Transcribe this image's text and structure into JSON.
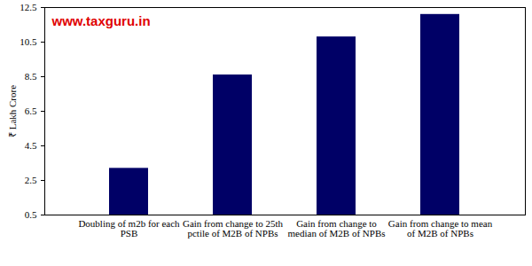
{
  "chart_data": {
    "type": "bar",
    "annotations": [
      "www.taxguru.in"
    ],
    "y_label": "₹ Lakh Crore",
    "categories": [
      "Doubling of m2b for each PSB",
      "Gain from change to 25th pctile of M2B of NPBs",
      "Gain from change to median of M2B of NPBs",
      "Gain from change to mean of M2B of NPBs"
    ],
    "values": [
      3.2,
      8.6,
      10.8,
      12.1
    ],
    "color": "#000066",
    "ylim": [
      0.5,
      12.5
    ],
    "yticks": [
      0.5,
      2.5,
      4.5,
      6.5,
      8.5,
      10.5,
      12.5
    ],
    "grid": false
  }
}
